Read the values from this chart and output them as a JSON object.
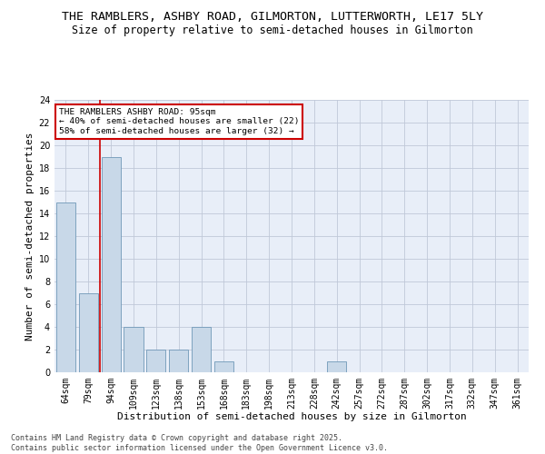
{
  "title": "THE RAMBLERS, ASHBY ROAD, GILMORTON, LUTTERWORTH, LE17 5LY",
  "subtitle": "Size of property relative to semi-detached houses in Gilmorton",
  "xlabel": "Distribution of semi-detached houses by size in Gilmorton",
  "ylabel": "Number of semi-detached properties",
  "categories": [
    "64sqm",
    "79sqm",
    "94sqm",
    "109sqm",
    "123sqm",
    "138sqm",
    "153sqm",
    "168sqm",
    "183sqm",
    "198sqm",
    "213sqm",
    "228sqm",
    "242sqm",
    "257sqm",
    "272sqm",
    "287sqm",
    "302sqm",
    "317sqm",
    "332sqm",
    "347sqm",
    "361sqm"
  ],
  "values": [
    15,
    7,
    19,
    4,
    2,
    2,
    4,
    1,
    0,
    0,
    0,
    0,
    1,
    0,
    0,
    0,
    0,
    0,
    0,
    0,
    0
  ],
  "bar_color": "#c8d8e8",
  "bar_edge_color": "#7098b8",
  "reference_line_index": 2,
  "reference_line_color": "#cc0000",
  "annotation_text": "THE RAMBLERS ASHBY ROAD: 95sqm\n← 40% of semi-detached houses are smaller (22)\n58% of semi-detached houses are larger (32) →",
  "annotation_box_color": "#cc0000",
  "ylim": [
    0,
    24
  ],
  "yticks": [
    0,
    2,
    4,
    6,
    8,
    10,
    12,
    14,
    16,
    18,
    20,
    22,
    24
  ],
  "grid_color": "#c0c8d8",
  "background_color": "#e8eef8",
  "footer_text": "Contains HM Land Registry data © Crown copyright and database right 2025.\nContains public sector information licensed under the Open Government Licence v3.0.",
  "title_fontsize": 9.5,
  "subtitle_fontsize": 8.5,
  "axis_label_fontsize": 8,
  "tick_fontsize": 7,
  "footer_fontsize": 6
}
